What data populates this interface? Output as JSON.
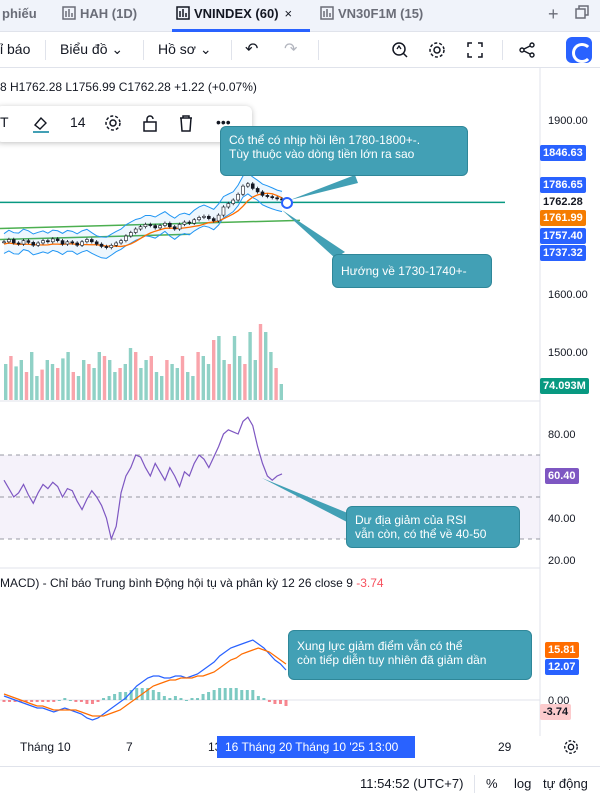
{
  "tabs": [
    {
      "label": "phiếu",
      "active": false
    },
    {
      "label": "HAH (1D)",
      "active": false
    },
    {
      "label": "VNINDEX (60)",
      "active": true
    },
    {
      "label": "VN30F1M (15)",
      "active": false
    }
  ],
  "tab_close": "×",
  "toolbar": {
    "indicators_label": "ỉ báo",
    "chart_label": "Biểu đồ",
    "profile_label": "Hồ sơ"
  },
  "ohlc_text": "8 H1762.28 L1756.99 C1762.28 +1.22 (+0.07%)",
  "drawing_toolbar": {
    "font_size": "14"
  },
  "price_axis": {
    "labels": [
      "1900.00",
      "1600.00",
      "1500.00"
    ],
    "tags": [
      {
        "value": "1846.63",
        "color": "#2962ff"
      },
      {
        "value": "1786.65",
        "color": "#2962ff"
      },
      {
        "value": "1762.28",
        "color": "#ffffff"
      },
      {
        "value": "1761.99",
        "color": "#f57c00"
      },
      {
        "value": "1757.40",
        "color": "#2962ff"
      },
      {
        "value": "1737.32",
        "color": "#2962ff"
      },
      {
        "value": "74.093M",
        "color": "#089981"
      }
    ]
  },
  "rsi_axis": {
    "labels": [
      "80.00",
      "40.00",
      "20.00"
    ],
    "tag": "60.40"
  },
  "macd": {
    "title": "MACD) - Chỉ báo Trung bình Động hội tụ và phân kỳ  12  26  close  9",
    "value": "-3.74",
    "axis_labels": [
      "0.00"
    ],
    "tags": [
      "15.81",
      "12.07",
      "-3.74"
    ]
  },
  "callouts": {
    "top": "Có thể có nhịp hồi lên 1780-1800+-.\nTùy thuộc vào dòng tiền lớn ra sao",
    "middle": "Hướng về 1730-1740+-",
    "rsi": "Dư địa giảm của RSI\nvẫn còn, có thể về 40-50",
    "macd": "Xung lực giảm điểm vẫn có thể\ncòn tiếp diễn tuy nhiên đã giảm dần"
  },
  "time_axis": {
    "labels": [
      "Tháng 10",
      "7",
      "13",
      "29"
    ],
    "highlight": "16 Tháng  20 Tháng 10 '25   13:00"
  },
  "status": {
    "time": "11:54:52 (UTC+7)",
    "percent": "%",
    "log": "log",
    "auto": "tự động"
  },
  "colors": {
    "accent": "#2962ff",
    "up": "#089981",
    "down": "#f23645",
    "callout": "#42a0b5",
    "rsi_line": "#7e57c2",
    "macd_line": "#2962ff",
    "signal_line": "#ff6d00"
  },
  "chart_data": {
    "price_series": [
      1690,
      1694,
      1688,
      1686,
      1692,
      1689,
      1684,
      1688,
      1692,
      1690,
      1695,
      1692,
      1686,
      1690,
      1688,
      1684,
      1690,
      1694,
      1690,
      1686,
      1682,
      1680,
      1684,
      1688,
      1692,
      1700,
      1706,
      1712,
      1716,
      1720,
      1718,
      1714,
      1718,
      1722,
      1716,
      1712,
      1720,
      1724,
      1722,
      1728,
      1732,
      1734,
      1730,
      1726,
      1736,
      1750,
      1756,
      1762,
      1772,
      1786,
      1790,
      1782,
      1776,
      1770,
      1768,
      1766,
      1764,
      1762
    ],
    "volume_bars_relative": [
      0.45,
      0.55,
      0.42,
      0.5,
      0.35,
      0.6,
      0.3,
      0.38,
      0.5,
      0.45,
      0.4,
      0.52,
      0.6,
      0.35,
      0.3,
      0.5,
      0.45,
      0.4,
      0.6,
      0.55,
      0.5,
      0.35,
      0.4,
      0.45,
      0.65,
      0.6,
      0.4,
      0.5,
      0.55,
      0.35,
      0.3,
      0.5,
      0.45,
      0.4,
      0.55,
      0.35,
      0.3,
      0.6,
      0.55,
      0.45,
      0.75,
      0.8,
      0.5,
      0.45,
      0.8,
      0.55,
      0.45,
      0.85,
      0.5,
      0.95,
      0.85,
      0.6,
      0.4,
      0.2
    ],
    "rsi_series": [
      58,
      54,
      50,
      52,
      56,
      51,
      47,
      52,
      56,
      54,
      57,
      55,
      50,
      54,
      53,
      48,
      44,
      49,
      53,
      50,
      46,
      40,
      30,
      36,
      52,
      60,
      64,
      70,
      69,
      64,
      60,
      66,
      62,
      58,
      64,
      60,
      55,
      62,
      60,
      66,
      70,
      68,
      64,
      69,
      74,
      80,
      82,
      81,
      80,
      86,
      88,
      84,
      74,
      66,
      60,
      58,
      60,
      61
    ],
    "macd_series": [
      2,
      1,
      0,
      -1,
      -2,
      -3,
      -4,
      -4,
      -5,
      -6,
      -5,
      -4,
      -5,
      -6,
      -7,
      -9,
      -10,
      -9,
      -7,
      -5,
      -3,
      -1,
      1,
      4,
      7,
      9,
      11,
      12,
      12,
      11,
      11,
      12,
      12,
      11,
      12,
      13,
      15,
      17,
      19,
      22,
      24,
      26,
      27,
      28,
      29,
      30,
      28,
      26,
      23,
      20,
      18,
      15
    ],
    "signal_series": [
      3,
      2,
      1,
      0,
      -1,
      -2,
      -3,
      -3,
      -4,
      -5,
      -5,
      -5,
      -5,
      -5,
      -6,
      -7,
      -8,
      -8,
      -8,
      -7,
      -6,
      -5,
      -3,
      -1,
      1,
      3,
      5,
      7,
      8,
      9,
      10,
      10,
      11,
      11,
      11,
      12,
      12,
      13,
      14,
      16,
      18,
      20,
      21,
      23,
      24,
      25,
      26,
      25,
      24,
      22,
      20,
      18
    ],
    "rsi_bands": [
      70,
      50,
      30
    ]
  }
}
